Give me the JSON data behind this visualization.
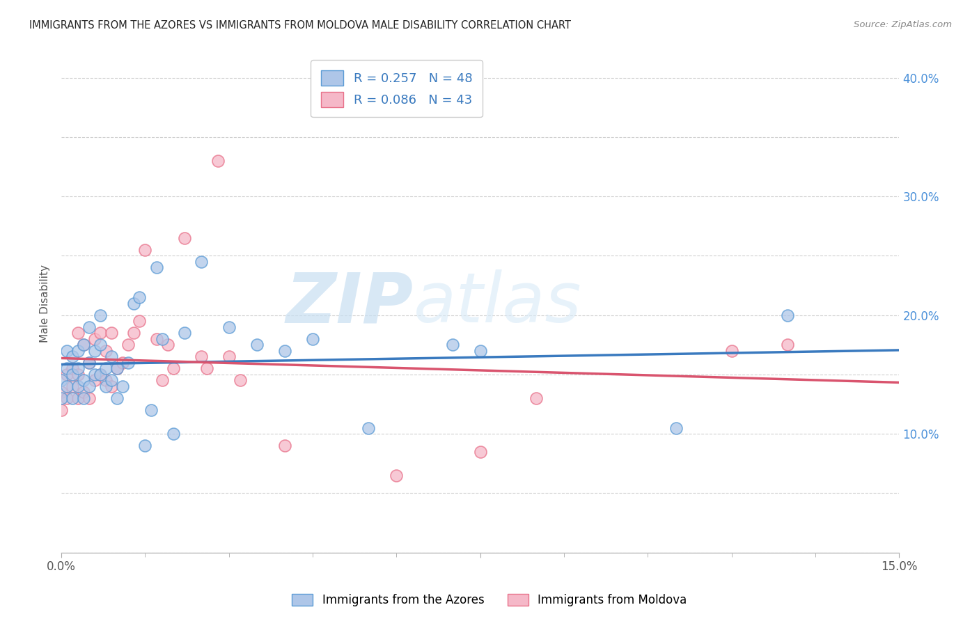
{
  "title": "IMMIGRANTS FROM THE AZORES VS IMMIGRANTS FROM MOLDOVA MALE DISABILITY CORRELATION CHART",
  "source": "Source: ZipAtlas.com",
  "ylabel": "Male Disability",
  "xlim": [
    0.0,
    0.15
  ],
  "ylim": [
    0.0,
    0.42
  ],
  "xticks_major": [
    0.0,
    0.075,
    0.15
  ],
  "xtick_labels": [
    "0.0%",
    "",
    "15.0%"
  ],
  "xticks_minor": [
    0.015,
    0.03,
    0.045,
    0.06,
    0.09,
    0.105,
    0.12,
    0.135
  ],
  "yticks": [
    0.0,
    0.05,
    0.1,
    0.15,
    0.2,
    0.25,
    0.3,
    0.35,
    0.4
  ],
  "ytick_labels": [
    "",
    "",
    "10.0%",
    "",
    "20.0%",
    "",
    "30.0%",
    "",
    "40.0%"
  ],
  "azores_color": "#aec6e8",
  "moldova_color": "#f5b8c8",
  "azores_edge_color": "#5b9bd5",
  "moldova_edge_color": "#e8718a",
  "azores_line_color": "#3a7abf",
  "moldova_line_color": "#d9546e",
  "legend_azores_label": "R = 0.257   N = 48",
  "legend_moldova_label": "R = 0.086   N = 43",
  "legend_bottom_azores": "Immigrants from the Azores",
  "legend_bottom_moldova": "Immigrants from Moldova",
  "watermark_zip": "ZIP",
  "watermark_atlas": "atlas",
  "azores_x": [
    0.0,
    0.0,
    0.001,
    0.001,
    0.001,
    0.002,
    0.002,
    0.002,
    0.003,
    0.003,
    0.003,
    0.004,
    0.004,
    0.004,
    0.005,
    0.005,
    0.005,
    0.006,
    0.006,
    0.007,
    0.007,
    0.007,
    0.008,
    0.008,
    0.009,
    0.009,
    0.01,
    0.01,
    0.011,
    0.012,
    0.013,
    0.014,
    0.015,
    0.016,
    0.017,
    0.018,
    0.02,
    0.022,
    0.025,
    0.03,
    0.035,
    0.04,
    0.045,
    0.055,
    0.07,
    0.075,
    0.11,
    0.13
  ],
  "azores_y": [
    0.13,
    0.145,
    0.14,
    0.155,
    0.17,
    0.13,
    0.15,
    0.165,
    0.14,
    0.155,
    0.17,
    0.13,
    0.145,
    0.175,
    0.14,
    0.16,
    0.19,
    0.15,
    0.17,
    0.15,
    0.175,
    0.2,
    0.14,
    0.155,
    0.145,
    0.165,
    0.13,
    0.155,
    0.14,
    0.16,
    0.21,
    0.215,
    0.09,
    0.12,
    0.24,
    0.18,
    0.1,
    0.185,
    0.245,
    0.19,
    0.175,
    0.17,
    0.18,
    0.105,
    0.175,
    0.17,
    0.105,
    0.2
  ],
  "moldova_x": [
    0.0,
    0.0,
    0.001,
    0.001,
    0.002,
    0.002,
    0.003,
    0.003,
    0.003,
    0.004,
    0.004,
    0.005,
    0.005,
    0.006,
    0.006,
    0.007,
    0.007,
    0.008,
    0.008,
    0.009,
    0.009,
    0.01,
    0.011,
    0.012,
    0.013,
    0.014,
    0.015,
    0.017,
    0.018,
    0.019,
    0.02,
    0.022,
    0.025,
    0.026,
    0.028,
    0.03,
    0.032,
    0.04,
    0.06,
    0.075,
    0.085,
    0.12,
    0.13
  ],
  "moldova_y": [
    0.12,
    0.135,
    0.13,
    0.15,
    0.14,
    0.155,
    0.13,
    0.15,
    0.185,
    0.135,
    0.175,
    0.13,
    0.16,
    0.145,
    0.18,
    0.15,
    0.185,
    0.145,
    0.17,
    0.14,
    0.185,
    0.155,
    0.16,
    0.175,
    0.185,
    0.195,
    0.255,
    0.18,
    0.145,
    0.175,
    0.155,
    0.265,
    0.165,
    0.155,
    0.33,
    0.165,
    0.145,
    0.09,
    0.065,
    0.085,
    0.13,
    0.17,
    0.175
  ]
}
